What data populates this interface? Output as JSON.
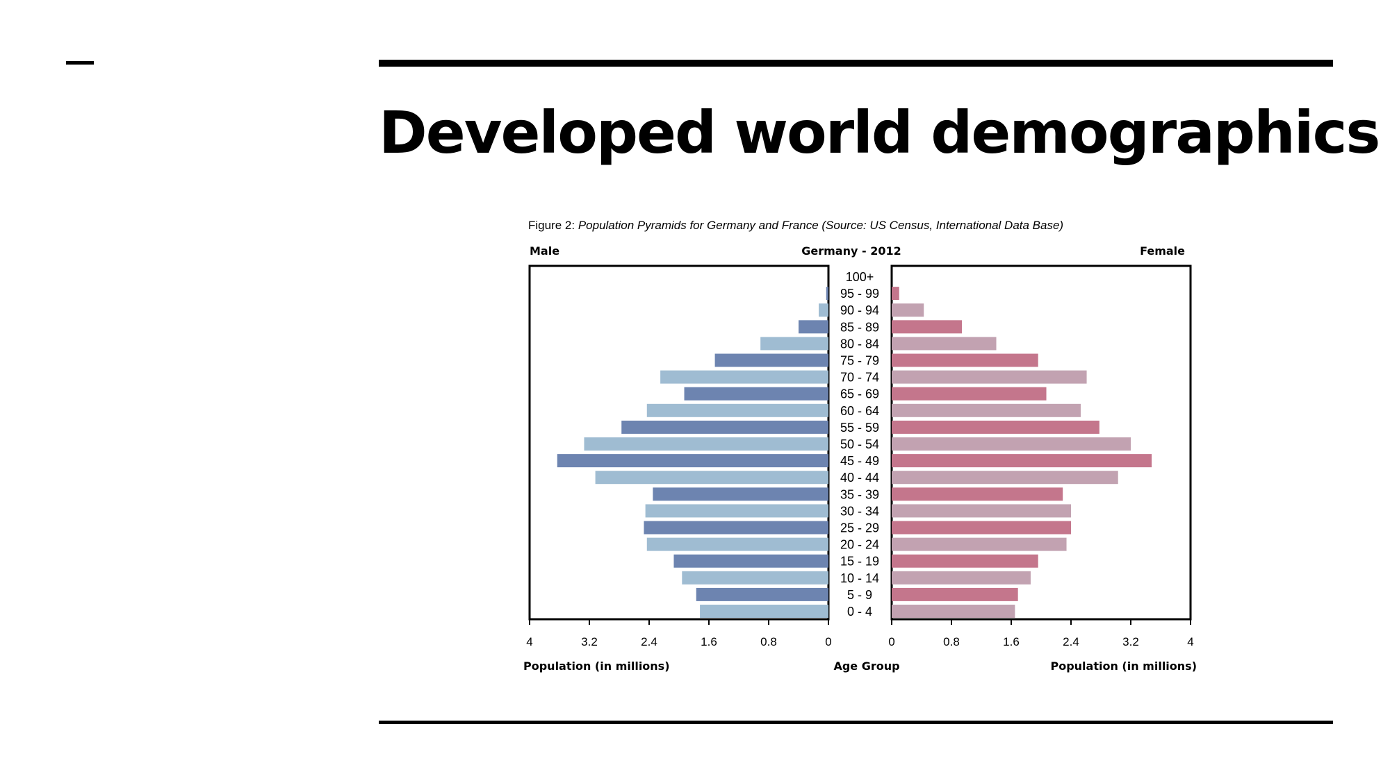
{
  "slide": {
    "title": "Developed world demographics"
  },
  "chart_data": {
    "type": "bar",
    "orientation": "horizontal-population-pyramid",
    "caption_label": "Figure 2:",
    "caption_text": " Population Pyramids for Germany and France (Source: US Census, International Data Base)",
    "title": "Germany - 2012",
    "left_label": "Male",
    "right_label": "Female",
    "left_xlabel": "Population (in millions)",
    "center_label": "Age Group",
    "right_xlabel": "Population (in millions)",
    "xlim": [
      0,
      4
    ],
    "ticks": [
      "4",
      "3.2",
      "2.4",
      "1.6",
      "0.8",
      "0"
    ],
    "ticks_right": [
      "0",
      "0.8",
      "1.6",
      "2.4",
      "3.2",
      "4"
    ],
    "categories": [
      "100+",
      "95 - 99",
      "90 - 94",
      "85 - 89",
      "80 - 84",
      "75 - 79",
      "70 - 74",
      "65 - 69",
      "60 - 64",
      "55 - 59",
      "50 - 54",
      "45 - 49",
      "40 - 44",
      "35 - 39",
      "30 - 34",
      "25 - 29",
      "20 - 24",
      "15 - 19",
      "10 - 14",
      "5 - 9",
      "0 - 4"
    ],
    "series": [
      {
        "name": "Male",
        "values": [
          0.0,
          0.03,
          0.13,
          0.4,
          0.91,
          1.52,
          2.25,
          1.93,
          2.43,
          2.77,
          3.27,
          3.63,
          3.12,
          2.35,
          2.45,
          2.47,
          2.43,
          2.07,
          1.96,
          1.77,
          1.72
        ]
      },
      {
        "name": "Female",
        "values": [
          0.0,
          0.1,
          0.43,
          0.94,
          1.4,
          1.96,
          2.61,
          2.07,
          2.53,
          2.78,
          3.2,
          3.48,
          3.03,
          2.29,
          2.4,
          2.4,
          2.34,
          1.96,
          1.86,
          1.69,
          1.65
        ]
      }
    ],
    "colors": {
      "male_even": "#6d84b0",
      "male_odd": "#9fbcd2",
      "female_even": "#c4768c",
      "female_odd": "#c2a2b1"
    },
    "grid": false,
    "legend": "none"
  }
}
